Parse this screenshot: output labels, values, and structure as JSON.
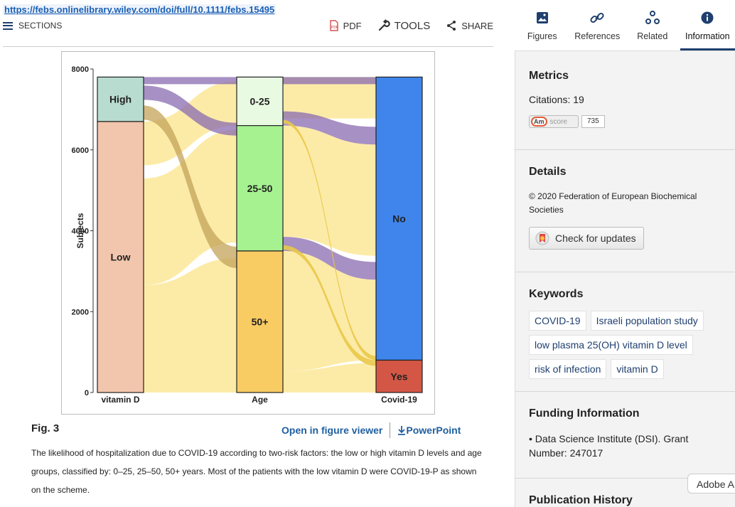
{
  "url": "https://febs.onlinelibrary.wiley.com/doi/full/10.1111/febs.15495",
  "toolbar": {
    "sections": "SECTIONS",
    "pdf": "PDF",
    "tools": "TOOLS",
    "share": "SHARE"
  },
  "figure": {
    "label": "Fig. 3",
    "open_viewer": "Open in figure viewer",
    "powerpoint": "PowerPoint",
    "caption": "The likelihood of hospitalization due to COVID-19 according to two-risk factors: the low or high vitamin D levels and age groups, classified by: 0–25, 25–50, 50+ years. Most of the patients with the low vitamin D were COVID-19-P as shown on the scheme."
  },
  "chart_data": {
    "type": "sankey",
    "ylabel": "Subjects",
    "ylim": [
      0,
      8000
    ],
    "yticks": [
      0,
      2000,
      4000,
      6000,
      8000
    ],
    "axes": [
      "vitamin D",
      "Age",
      "Covid-19"
    ],
    "nodes": [
      {
        "axis": "vitamin D",
        "name": "High",
        "value": 1100,
        "color": "#b8dcd0"
      },
      {
        "axis": "vitamin D",
        "name": "Low",
        "value": 6700,
        "color": "#f2c5ad"
      },
      {
        "axis": "Age",
        "name": "0-25",
        "value": 1200,
        "color": "#e8fae1"
      },
      {
        "axis": "Age",
        "name": "25-50",
        "value": 3100,
        "color": "#a6f291"
      },
      {
        "axis": "Age",
        "name": "50+",
        "value": 3500,
        "color": "#f8cb63"
      },
      {
        "axis": "Covid-19",
        "name": "No",
        "value": 7000,
        "color": "#3f85ec"
      },
      {
        "axis": "Covid-19",
        "name": "Yes",
        "value": 800,
        "color": "#d45745"
      }
    ]
  },
  "tabs": [
    {
      "label": "Figures",
      "icon": "image-icon"
    },
    {
      "label": "References",
      "icon": "link-icon"
    },
    {
      "label": "Related",
      "icon": "network-icon"
    },
    {
      "label": "Information",
      "icon": "info-icon"
    }
  ],
  "metrics": {
    "title": "Metrics",
    "citations": "Citations: 19",
    "altmetric_label": "Am",
    "altmetric_word": "score",
    "altmetric_score": "735"
  },
  "details": {
    "title": "Details",
    "copyright": "© 2020 Federation of European Biochemical Societies",
    "check_updates": "Check for updates"
  },
  "keywords": {
    "title": "Keywords",
    "items": [
      "COVID-19",
      "Israeli population study",
      "low plasma 25(OH) vitamin D level",
      "risk of infection",
      "vitamin D"
    ]
  },
  "funding": {
    "title": "Funding Information",
    "text": "Data Science Institute (DSI). Grant Number: 247017"
  },
  "pub_history": {
    "title": "Publication History"
  },
  "adobe": "Adobe A"
}
